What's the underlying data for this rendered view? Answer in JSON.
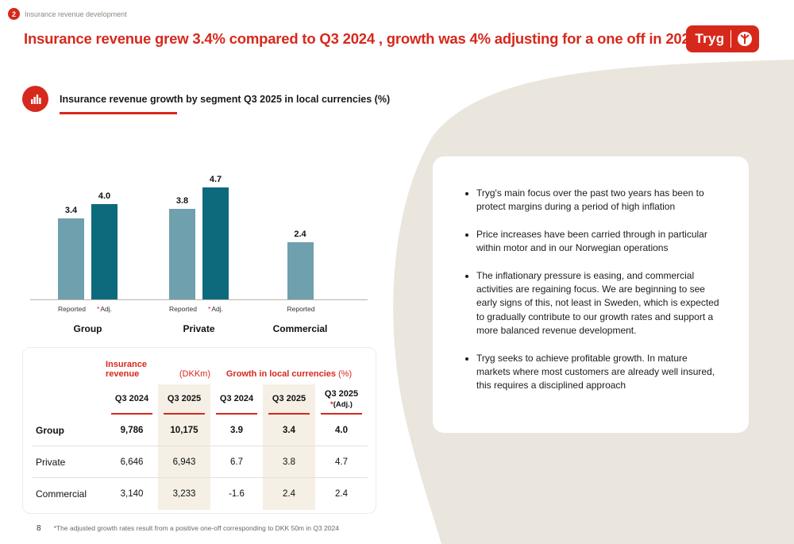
{
  "colors": {
    "brand_red": "#d7281c",
    "background_beige": "#eae5dd",
    "bar_reported": "#6fa0ae",
    "bar_adjusted": "#0d6a7d",
    "table_shade": "#f5efe6"
  },
  "header": {
    "slide_tag_number": "2",
    "slide_tag_label": "Insurance revenue development",
    "title": "Insurance revenue grew 3.4% compared to Q3 2024 , growth was 4% adjusting for a one off in 2024"
  },
  "logo": {
    "text": "Tryg"
  },
  "section": {
    "heading": "Insurance revenue growth by segment Q3 2025 in local currencies (%)"
  },
  "chart_data": {
    "type": "bar",
    "title": "Insurance revenue growth by segment Q3 2025 in local currencies (%)",
    "unit": "%",
    "ylim": [
      0,
      5
    ],
    "asterisk": "*",
    "series": [
      "Reported",
      "Adj."
    ],
    "groups": [
      {
        "label": "Group",
        "bars": [
          {
            "series": "Reported",
            "value": 3.4,
            "display": "3.4"
          },
          {
            "series": "Adj.",
            "value": 4.0,
            "display": "4.0",
            "adjusted": true
          }
        ]
      },
      {
        "label": "Private",
        "bars": [
          {
            "series": "Reported",
            "value": 3.8,
            "display": "3.8"
          },
          {
            "series": "Adj.",
            "value": 4.7,
            "display": "4.7",
            "adjusted": true
          }
        ]
      },
      {
        "label": "Commercial",
        "bars": [
          {
            "series": "Reported",
            "value": 2.4,
            "display": "2.4"
          }
        ]
      }
    ]
  },
  "table": {
    "group_headers": [
      {
        "name": "Insurance revenue",
        "unit": "(DKKm)"
      },
      {
        "name": "Growth in local currencies",
        "unit": "(%)"
      }
    ],
    "col_headers": [
      "Q3 2024",
      "Q3 2025",
      "Q3 2024",
      "Q3 2025"
    ],
    "adj_col_header": {
      "line1": "Q3 2025",
      "marker": "*",
      "line2": "(Adj.)"
    },
    "rows": [
      {
        "label": "Group",
        "values": [
          "9,786",
          "10,175",
          "3.9",
          "3.4",
          "4.0"
        ]
      },
      {
        "label": "Private",
        "values": [
          "6,646",
          "6,943",
          "6.7",
          "3.8",
          "4.7"
        ]
      },
      {
        "label": "Commercial",
        "values": [
          "3,140",
          "3,233",
          "-1.6",
          "2.4",
          "2.4"
        ]
      }
    ]
  },
  "insights": {
    "bullets": [
      "Tryg's main focus over the past two years has been to protect margins during a period of high inflation",
      "Price increases have been carried through in particular within motor and in our Norwegian operations",
      "The inflationary pressure is easing, and commercial activities are regaining focus. We are beginning to see early signs of this, not least in Sweden, which is expected to gradually contribute to our growth rates and support a more balanced revenue development.",
      "Tryg seeks to achieve profitable growth. In mature markets where most customers are already well insured, this requires a disciplined approach"
    ]
  },
  "footer": {
    "page_number": "8",
    "footnote": "*The adjusted growth rates result from a positive one-off corresponding to DKK 50m in Q3 2024"
  }
}
